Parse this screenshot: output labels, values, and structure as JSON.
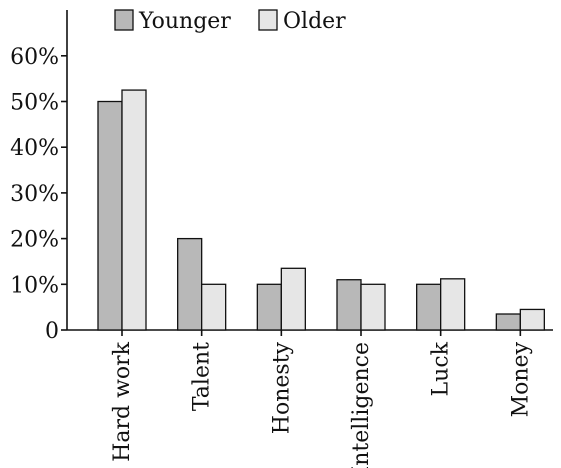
{
  "chart_data": {
    "type": "bar",
    "categories": [
      "Hard work",
      "Talent",
      "Honesty",
      "Intelligence",
      "Luck",
      "Money"
    ],
    "series": [
      {
        "name": "Younger",
        "values": [
          50,
          20,
          10,
          11,
          10,
          3.5
        ],
        "color": "#b8b8b8"
      },
      {
        "name": "Older",
        "values": [
          52.5,
          10,
          13.5,
          10,
          11.2,
          4.5
        ],
        "color": "#e6e6e6"
      }
    ],
    "ylim": [
      0,
      70
    ],
    "yticks": [
      0,
      10,
      20,
      30,
      40,
      50,
      60
    ],
    "ytick_labels": [
      "0",
      "10%",
      "20%",
      "30%",
      "40%",
      "50%",
      "60%"
    ],
    "legend_position": "top",
    "grid": false,
    "title": "",
    "xlabel": "",
    "ylabel": ""
  }
}
